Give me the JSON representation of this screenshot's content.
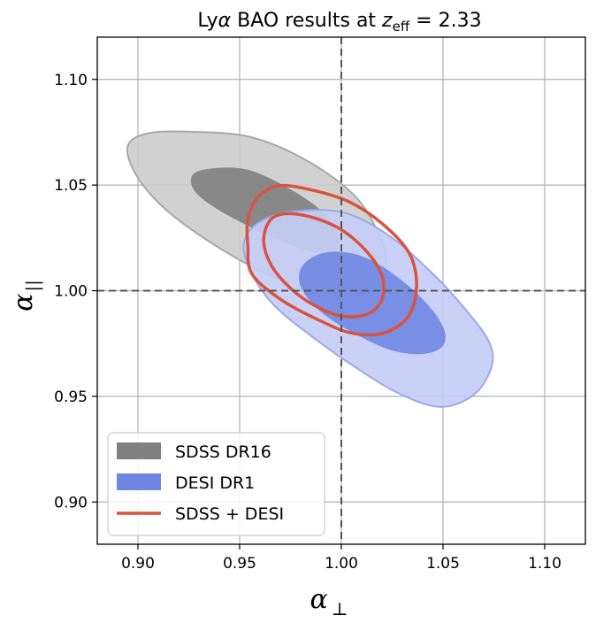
{
  "chart_data": {
    "type": "contour",
    "title_prefix": "Ly",
    "title_alpha": "α",
    "title_mid": " BAO results at ",
    "title_z": "z",
    "title_sub": "eff",
    "title_value": " = 2.33",
    "xlabel": "α",
    "xlabel_sub": "⊥",
    "ylabel": "α",
    "ylabel_sub": "||",
    "xlim": [
      0.88,
      1.12
    ],
    "ylim": [
      0.88,
      1.12
    ],
    "xticks": [
      0.9,
      0.95,
      1.0,
      1.05,
      1.1
    ],
    "yticks": [
      0.9,
      0.95,
      1.0,
      1.05,
      1.1
    ],
    "xtick_labels": [
      "0.90",
      "0.95",
      "1.00",
      "1.05",
      "1.10"
    ],
    "ytick_labels": [
      "0.90",
      "0.95",
      "1.00",
      "1.05",
      "1.10"
    ],
    "reference_lines": {
      "x": 1.0,
      "y": 1.0
    },
    "grid": true,
    "legend_position": "lower-left",
    "series": [
      {
        "name": "SDSS DR16",
        "style": "filled",
        "colors": [
          "#cccccc",
          "#808080"
        ],
        "edge_color": "#a8a8a8",
        "contours": [
          [
            [
              0.927,
              1.0752
            ],
            [
              0.9555,
              1.0727
            ],
            [
              0.9832,
              1.0615
            ],
            [
              1.006,
              1.0455
            ],
            [
              1.0178,
              1.0283
            ],
            [
              1.022,
              1.0145
            ],
            [
              1.019,
              1.001
            ],
            [
              1.0078,
              0.996
            ],
            [
              0.9875,
              0.999
            ],
            [
              0.961,
              1.009
            ],
            [
              0.9355,
              1.023
            ],
            [
              0.913,
              1.039
            ],
            [
              0.899,
              1.055
            ],
            [
              0.895,
              1.0685
            ],
            [
              0.905,
              1.0745
            ]
          ],
          [
            [
              0.938,
              1.058
            ],
            [
              0.955,
              1.057
            ],
            [
              0.975,
              1.048
            ],
            [
              0.99,
              1.038
            ],
            [
              0.997,
              1.029
            ],
            [
              0.999,
              1.021
            ],
            [
              0.994,
              1.017
            ],
            [
              0.98,
              1.02
            ],
            [
              0.96,
              1.028
            ],
            [
              0.94,
              1.038
            ],
            [
              0.928,
              1.047
            ],
            [
              0.927,
              1.055
            ]
          ]
        ]
      },
      {
        "name": "DESI DR1",
        "style": "filled",
        "colors": [
          "#c5cdf5",
          "#6f87e3"
        ],
        "edge_color": "#9aa9ec",
        "contours": [
          [
            [
              0.976,
              1.0375
            ],
            [
              1.001,
              1.037
            ],
            [
              1.0235,
              1.026
            ],
            [
              1.045,
              1.008
            ],
            [
              1.062,
              0.99
            ],
            [
              1.0725,
              0.976
            ],
            [
              1.074,
              0.9645
            ],
            [
              1.0655,
              0.951
            ],
            [
              1.0485,
              0.945
            ],
            [
              1.027,
              0.952
            ],
            [
              1.005,
              0.965
            ],
            [
              0.986,
              0.978
            ],
            [
              0.967,
              0.993
            ],
            [
              0.956,
              1.008
            ],
            [
              0.952,
              1.022
            ],
            [
              0.959,
              1.032
            ]
          ],
          [
            [
              0.992,
              1.018
            ],
            [
              1.008,
              1.017
            ],
            [
              1.024,
              1.009
            ],
            [
              1.04,
              0.996
            ],
            [
              1.05,
              0.983
            ],
            [
              1.05,
              0.974
            ],
            [
              1.04,
              0.97
            ],
            [
              1.024,
              0.972
            ],
            [
              1.006,
              0.98
            ],
            [
              0.99,
              0.99
            ],
            [
              0.98,
              1.002
            ],
            [
              0.981,
              1.012
            ]
          ]
        ]
      },
      {
        "name": "SDSS + DESI",
        "style": "line",
        "colors": [
          "#d9533f"
        ],
        "contours": [
          [
            [
              0.968,
              1.0495
            ],
            [
              0.984,
              1.048
            ],
            [
              1.004,
              1.042
            ],
            [
              1.021,
              1.031
            ],
            [
              1.0335,
              1.0175
            ],
            [
              1.037,
              1.002
            ],
            [
              1.033,
              0.988
            ],
            [
              1.021,
              0.98
            ],
            [
              1.005,
              0.98
            ],
            [
              0.988,
              0.9865
            ],
            [
              0.97,
              0.996
            ],
            [
              0.956,
              1.008
            ],
            [
              0.954,
              1.022
            ],
            [
              0.954,
              1.033
            ],
            [
              0.958,
              1.043
            ]
          ],
          [
            [
              0.967,
              1.035
            ],
            [
              0.98,
              1.036
            ],
            [
              0.998,
              1.03
            ],
            [
              1.012,
              1.019
            ],
            [
              1.02,
              1.007
            ],
            [
              1.02,
              0.996
            ],
            [
              1.013,
              0.989
            ],
            [
              1.0,
              0.988
            ],
            [
              0.985,
              0.994
            ],
            [
              0.972,
              1.004
            ],
            [
              0.964,
              1.015
            ],
            [
              0.962,
              1.026
            ]
          ]
        ]
      }
    ]
  }
}
